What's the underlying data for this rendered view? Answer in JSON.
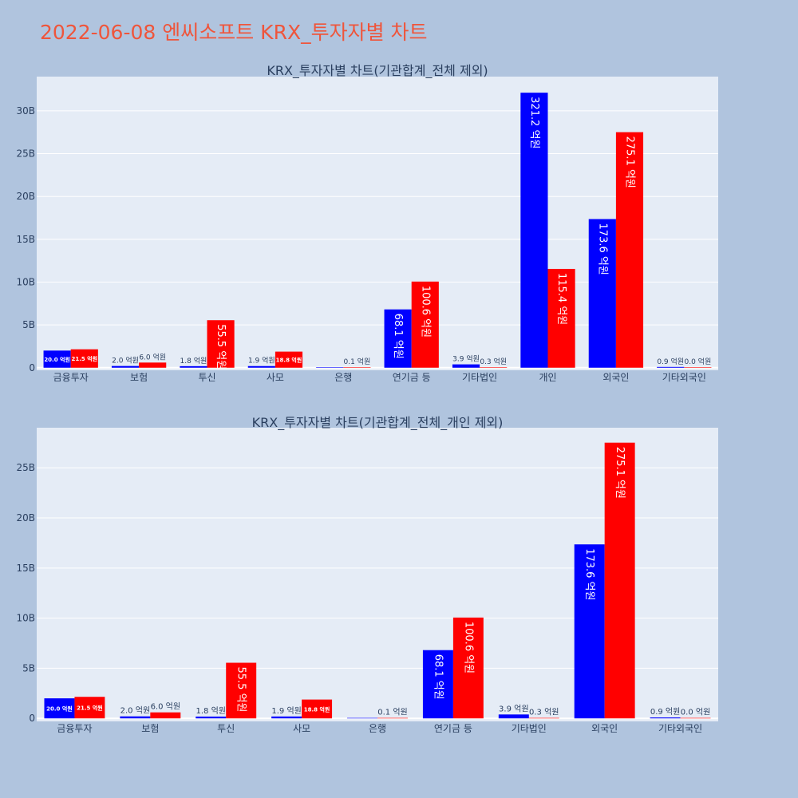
{
  "page_title": "2022-06-08 엔씨소프트 KRX_투자자별 차트",
  "colors": {
    "background": "#b0c4de",
    "plot_bg": "#e5ecf6",
    "grid": "#ffffff",
    "title": "#ef553b",
    "text": "#2a3f5f",
    "sell": "#0000ff",
    "buy": "#ff0000"
  },
  "chart_data": [
    {
      "type": "bar",
      "title": "KRX_투자자별 차트(기관합계_전체 제외)",
      "categories": [
        "금융투자",
        "보험",
        "투신",
        "사모",
        "은행",
        "연기금 등",
        "기타법인",
        "개인",
        "외국인",
        "기타외국인"
      ],
      "series": [
        {
          "color": "#0000ff",
          "values": [
            2.0,
            0.2,
            0.18,
            0.19,
            0.0,
            6.81,
            0.39,
            32.12,
            17.36,
            0.09
          ],
          "labels": [
            "20.0 억원",
            "2.0 억원",
            "1.8 억원",
            "1.9 억원",
            "",
            "68.1 억원",
            "3.9 억원",
            "321.2 억원",
            "173.6 억원",
            "0.9 억원"
          ]
        },
        {
          "color": "#ff0000",
          "values": [
            2.15,
            0.6,
            5.55,
            1.88,
            0.01,
            10.06,
            0.03,
            11.54,
            27.51,
            0.0
          ],
          "labels": [
            "21.5 억원",
            "6.0 억원",
            "55.5 억원",
            "18.8 억원",
            "0.1 억원",
            "100.6 억원",
            "0.3 억원",
            "115.4 억원",
            "275.1 억원",
            "0.0 억원"
          ]
        }
      ],
      "y_ticks": [
        0,
        5,
        10,
        15,
        20,
        25,
        30
      ],
      "y_tick_labels": [
        "0",
        "5B",
        "10B",
        "15B",
        "20B",
        "25B",
        "30B"
      ],
      "ylim": [
        -0.3,
        34.0
      ],
      "grid": true
    },
    {
      "type": "bar",
      "title": "KRX_투자자별 차트(기관합계_전체_개인 제외)",
      "categories": [
        "금융투자",
        "보험",
        "투신",
        "사모",
        "은행",
        "연기금 등",
        "기타법인",
        "외국인",
        "기타외국인"
      ],
      "series": [
        {
          "color": "#0000ff",
          "values": [
            2.0,
            0.2,
            0.18,
            0.19,
            0.0,
            6.81,
            0.39,
            17.36,
            0.09
          ],
          "labels": [
            "20.0 억원",
            "2.0 억원",
            "1.8 억원",
            "1.9 억원",
            "",
            "68.1 억원",
            "3.9 억원",
            "173.6 억원",
            "0.9 억원"
          ]
        },
        {
          "color": "#ff0000",
          "values": [
            2.15,
            0.6,
            5.55,
            1.88,
            0.01,
            10.06,
            0.03,
            27.51,
            0.0
          ],
          "labels": [
            "21.5 억원",
            "6.0 억원",
            "55.5 억원",
            "18.8 억원",
            "0.1 억원",
            "100.6 억원",
            "0.3 억원",
            "275.1 억원",
            "0.0 억원"
          ]
        }
      ],
      "y_ticks": [
        0,
        5,
        10,
        15,
        20,
        25
      ],
      "y_tick_labels": [
        "0",
        "5B",
        "10B",
        "15B",
        "20B",
        "25B"
      ],
      "ylim": [
        -0.3,
        29.0
      ],
      "grid": true
    }
  ]
}
